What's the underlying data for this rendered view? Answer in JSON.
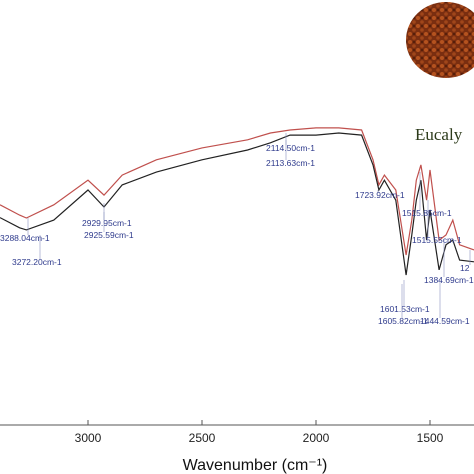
{
  "chart_data": {
    "type": "line",
    "x_label": "Wavenumber (cm⁻¹)",
    "x": [
      3386,
      3300,
      3270,
      3150,
      3000,
      2930,
      2850,
      2700,
      2500,
      2300,
      2200,
      2114,
      2000,
      1900,
      1800,
      1750,
      1724,
      1700,
      1650,
      1605,
      1580,
      1560,
      1540,
      1515,
      1500,
      1460,
      1430,
      1400,
      1370,
      1307
    ],
    "series": [
      {
        "color": "#c0504d",
        "values": [
          51.8,
          49.4,
          48.7,
          51.8,
          57.6,
          54.1,
          58.8,
          62.4,
          65.2,
          67.1,
          68.7,
          69.4,
          69.9,
          69.9,
          69.4,
          62.4,
          56.5,
          58.8,
          55.3,
          40.0,
          48.2,
          57.6,
          61.2,
          52.9,
          60.0,
          43.5,
          44.7,
          48.2,
          42.4,
          41.2
        ]
      },
      {
        "color": "#222222",
        "values": [
          48.8,
          46.4,
          45.9,
          48.2,
          55.3,
          51.3,
          56.5,
          59.5,
          62.4,
          64.7,
          66.4,
          68.2,
          68.2,
          68.7,
          68.2,
          61.2,
          55.3,
          57.6,
          52.9,
          35.3,
          44.7,
          52.9,
          57.6,
          43.5,
          50.6,
          36.5,
          42.4,
          43.5,
          38.8,
          38.4
        ]
      }
    ],
    "xlim": [
      3386,
      1307
    ],
    "ylim": [
      0,
      100
    ],
    "xticks": [
      3000,
      2500,
      2000,
      1500
    ],
    "annotations": [
      {
        "text": "3288.04cm-1"
      },
      {
        "text": "3272.20cm-1"
      },
      {
        "text": "2929.95cm-1"
      },
      {
        "text": "2925.59cm-1"
      },
      {
        "text": "2114.50cm-1"
      },
      {
        "text": "2113.63cm-1"
      },
      {
        "text": "1723.92cm-1"
      },
      {
        "text": "1515.85cm-1"
      },
      {
        "text": "1515.55cm-1"
      },
      {
        "text": "1384.69cm-1"
      },
      {
        "text": "1601.53cm-1"
      },
      {
        "text": "1605.82cm-1"
      },
      {
        "text": "1444.59cm-1"
      },
      {
        "text": "12"
      }
    ],
    "inset": {
      "caption": "Eucaly"
    }
  }
}
